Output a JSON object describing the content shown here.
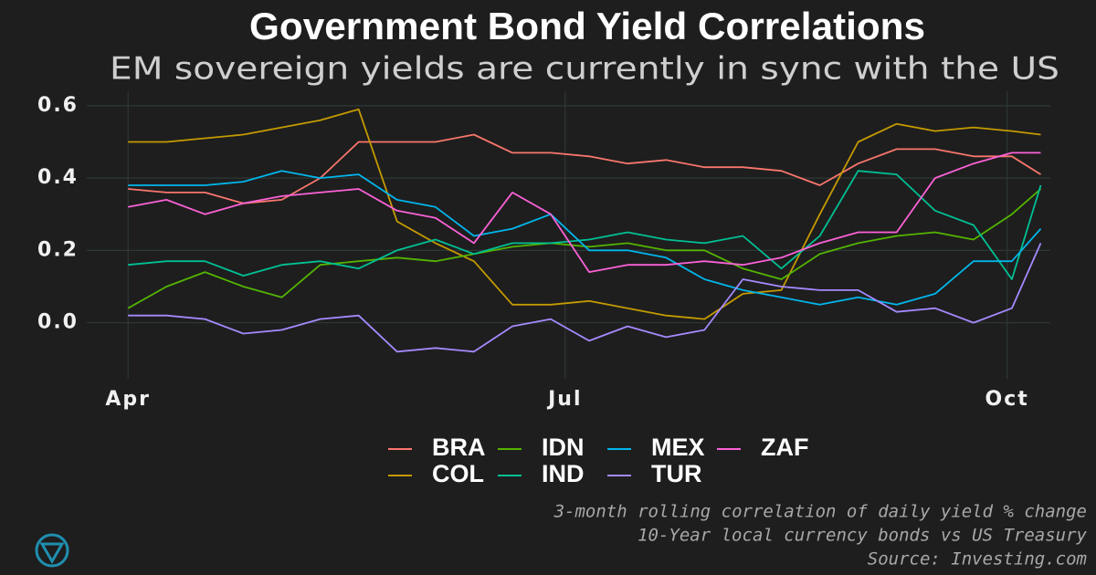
{
  "chart_data": {
    "type": "line",
    "title": "Government Bond Yield Correlations",
    "subtitle": "EM sovereign yields are currently in sync with the US",
    "captions": [
      "3-month rolling correlation of daily yield % change",
      "10-Year local currency bonds vs US Treasury",
      "Source: Investing.com"
    ],
    "x": [
      0,
      8,
      16,
      24,
      32,
      40,
      48,
      56,
      64,
      72,
      80,
      88,
      96,
      104,
      112,
      120,
      128,
      136,
      144,
      152,
      160,
      168,
      176,
      184,
      190
    ],
    "xlim": [
      -8.6,
      192
    ],
    "xticks": [
      {
        "value": 0,
        "label": "Apr"
      },
      {
        "value": 91,
        "label": "Jul"
      },
      {
        "value": 183,
        "label": "Oct"
      }
    ],
    "ylim": [
      -0.155,
      0.64
    ],
    "yticks": [
      {
        "value": 0,
        "label": "0.0"
      },
      0.2,
      0.4,
      0.6
    ],
    "grid": true,
    "series": [
      {
        "name": "BRA",
        "color": "#f8766d",
        "values": [
          0.37,
          0.36,
          0.36,
          0.33,
          0.34,
          0.4,
          0.5,
          0.5,
          0.5,
          0.52,
          0.47,
          0.47,
          0.46,
          0.44,
          0.45,
          0.43,
          0.43,
          0.42,
          0.38,
          0.44,
          0.48,
          0.48,
          0.46,
          0.46,
          0.41
        ]
      },
      {
        "name": "COL",
        "color": "#c49a00",
        "values": [
          0.5,
          0.5,
          0.51,
          0.52,
          0.54,
          0.56,
          0.59,
          0.28,
          0.22,
          0.17,
          0.05,
          0.05,
          0.06,
          0.04,
          0.02,
          0.01,
          0.08,
          0.09,
          0.3,
          0.5,
          0.55,
          0.53,
          0.54,
          0.53,
          0.52
        ]
      },
      {
        "name": "IDN",
        "color": "#53b400",
        "values": [
          0.04,
          0.1,
          0.14,
          0.1,
          0.07,
          0.16,
          0.17,
          0.18,
          0.17,
          0.19,
          0.21,
          0.22,
          0.21,
          0.22,
          0.2,
          0.2,
          0.15,
          0.12,
          0.19,
          0.22,
          0.24,
          0.25,
          0.23,
          0.3,
          0.37
        ]
      },
      {
        "name": "IND",
        "color": "#00c094",
        "values": [
          0.16,
          0.17,
          0.17,
          0.13,
          0.16,
          0.17,
          0.15,
          0.2,
          0.23,
          0.19,
          0.22,
          0.22,
          0.23,
          0.25,
          0.23,
          0.22,
          0.24,
          0.15,
          0.24,
          0.42,
          0.41,
          0.31,
          0.27,
          0.12,
          0.38
        ]
      },
      {
        "name": "MEX",
        "color": "#00b6eb",
        "values": [
          0.38,
          0.38,
          0.38,
          0.39,
          0.42,
          0.4,
          0.41,
          0.34,
          0.32,
          0.24,
          0.26,
          0.3,
          0.2,
          0.2,
          0.18,
          0.12,
          0.09,
          0.07,
          0.05,
          0.07,
          0.05,
          0.08,
          0.17,
          0.17,
          0.26
        ]
      },
      {
        "name": "TUR",
        "color": "#a58aff",
        "values": [
          0.02,
          0.02,
          0.01,
          -0.03,
          -0.02,
          0.01,
          0.02,
          -0.08,
          -0.07,
          -0.08,
          -0.01,
          0.01,
          -0.05,
          -0.01,
          -0.04,
          -0.02,
          0.12,
          0.1,
          0.09,
          0.09,
          0.03,
          0.04,
          0.0,
          0.04,
          0.22
        ]
      },
      {
        "name": "ZAF",
        "color": "#fb61d7",
        "values": [
          0.32,
          0.34,
          0.3,
          0.33,
          0.35,
          0.36,
          0.37,
          0.31,
          0.29,
          0.22,
          0.36,
          0.3,
          0.14,
          0.16,
          0.16,
          0.17,
          0.16,
          0.18,
          0.22,
          0.25,
          0.25,
          0.4,
          0.44,
          0.47,
          0.47
        ]
      }
    ]
  }
}
